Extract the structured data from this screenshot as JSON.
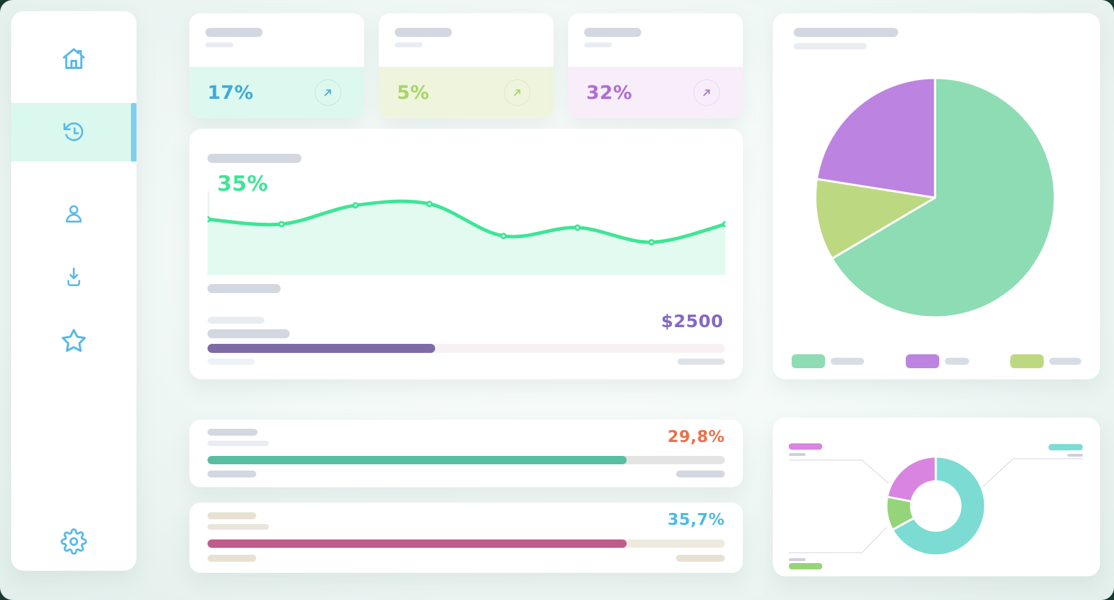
{
  "sidebar": {
    "accent": "#56b8e8",
    "active_bg": "#daf8ed",
    "active_bar_color": "#7fd0ee",
    "items": [
      {
        "label": "home",
        "active": false
      },
      {
        "label": "history",
        "active": true
      },
      {
        "label": "profile",
        "active": false
      },
      {
        "label": "downloads",
        "active": false
      },
      {
        "label": "favorites",
        "active": false
      }
    ],
    "settings_label": "settings"
  },
  "stat_cards": [
    {
      "value": "17%",
      "accent": "#3fa9dc",
      "panel_bg": "#ddf8ef",
      "ring": "#c5e7dc"
    },
    {
      "value": "5%",
      "accent": "#a9d468",
      "panel_bg": "#eef5dc",
      "ring": "#dde8c5"
    },
    {
      "value": "32%",
      "accent": "#ae6ed2",
      "panel_bg": "#f7eefa",
      "ring": "#e7d9ec"
    }
  ],
  "trend_card": {
    "value_label": "35%",
    "label_color": "#3ee596",
    "amount": "$2500",
    "amount_color": "#8468c4",
    "progress": {
      "pct": 44,
      "fill": "#7e6ba6",
      "track": "#f7f1f4"
    }
  },
  "metric_cards": [
    {
      "value": "29,8%",
      "value_color": "#e9714b",
      "pct": 81,
      "bar_fill": "#57bda3",
      "bar_track": "#e4e4e5"
    },
    {
      "value": "35,7%",
      "value_color": "#4cbbe9",
      "pct": 81,
      "bar_fill": "#c05c8c",
      "bar_track": "#efeadf"
    }
  ],
  "chart_data": [
    {
      "id": "trend-area",
      "type": "area",
      "title": "",
      "value_label": "35%",
      "line_color": "#3ee596",
      "fill_color": "#e2faf0",
      "axis_color": "#edf2f6",
      "x": [
        1,
        2,
        3,
        4,
        5,
        6,
        7,
        8
      ],
      "values": [
        80,
        73,
        100,
        102,
        56,
        68,
        47,
        73
      ],
      "y_range": [
        0,
        125
      ],
      "grid": false,
      "legend_position": "none"
    },
    {
      "id": "share-pie",
      "type": "pie",
      "title": "",
      "slices": [
        {
          "name": "segment-green",
          "value": 66.5,
          "color": "#8edcb3"
        },
        {
          "name": "segment-olive",
          "value": 11,
          "color": "#bcd981"
        },
        {
          "name": "segment-purple",
          "value": 22.5,
          "color": "#bc83e0"
        }
      ],
      "legend": [
        {
          "name": "segment-green",
          "color": "#8edcb3"
        },
        {
          "name": "segment-purple",
          "color": "#bc83e0"
        },
        {
          "name": "segment-olive",
          "color": "#bcd981"
        }
      ],
      "legend_position": "bottom"
    },
    {
      "id": "breakdown-donut",
      "type": "donut",
      "title": "",
      "slices": [
        {
          "name": "segment-teal",
          "value": 67,
          "color": "#7cdcd4"
        },
        {
          "name": "segment-green",
          "value": 11,
          "color": "#95d478"
        },
        {
          "name": "segment-magenta",
          "value": 22,
          "color": "#d884e0"
        }
      ],
      "callouts": {
        "top_left_color": "#d884e0",
        "top_right_color": "#7cdcd4",
        "bottom_left_color": "#95d478",
        "line_color": "#d3d6e0"
      },
      "legend_position": "callouts"
    }
  ]
}
